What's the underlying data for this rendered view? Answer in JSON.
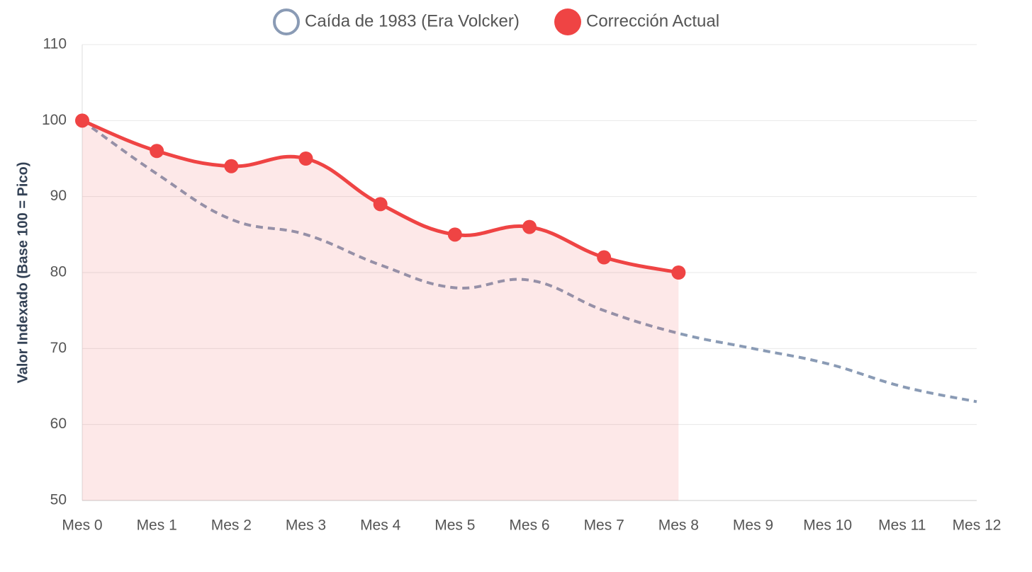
{
  "chart_data": {
    "type": "line",
    "y_label": "Valor Indexado (Base 100 = Pico)",
    "categories": [
      "Mes 0",
      "Mes 1",
      "Mes 2",
      "Mes 3",
      "Mes 4",
      "Mes 5",
      "Mes 6",
      "Mes 7",
      "Mes 8",
      "Mes 9",
      "Mes 10",
      "Mes 11",
      "Mes 12"
    ],
    "series": [
      {
        "name": "Caída de 1983 (Era Volcker)",
        "color": "#8a9bb5",
        "dashed": true,
        "fill": false,
        "points": false,
        "values": [
          100,
          93,
          87,
          85,
          81,
          78,
          79,
          75,
          72,
          70,
          68,
          65,
          63
        ]
      },
      {
        "name": "Corrección Actual",
        "color": "#ef4444",
        "dashed": false,
        "fill": true,
        "points": true,
        "values": [
          100,
          96,
          94,
          95,
          89,
          85,
          86,
          82,
          80,
          null,
          null,
          null,
          null
        ]
      }
    ],
    "ylim": [
      50,
      110
    ],
    "yticks": [
      50,
      60,
      70,
      80,
      90,
      100,
      110
    ],
    "grid": true,
    "legend": "top"
  }
}
